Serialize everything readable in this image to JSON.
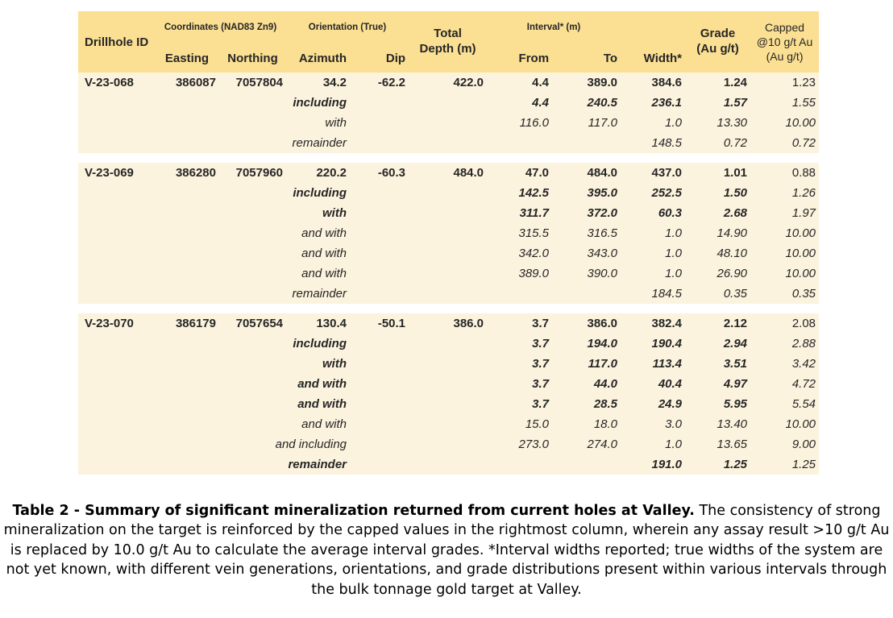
{
  "colors": {
    "header_bg": "#fbdf92",
    "body_bg": "#fcf3de",
    "table_text": "#262626",
    "caption_text": "#000000",
    "page_bg": "#ffffff"
  },
  "table": {
    "header": {
      "drillhole_id": "Drillhole ID",
      "coordinates_group": "Coordinates (NAD83 Zn9)",
      "easting": "Easting",
      "northing": "Northing",
      "orientation_group": "Orientation (True)",
      "azimuth": "Azimuth",
      "dip": "Dip",
      "total_depth": "Total Depth (m)",
      "interval_group": "Interval* (m)",
      "from": "From",
      "to": "To",
      "width": "Width*",
      "grade": "Grade (Au g/t)",
      "capped": "Capped @10 g/t Au (Au g/t)"
    },
    "groups": [
      {
        "drillhole_id": "V-23-068",
        "easting": "386087",
        "northing": "7057804",
        "azimuth": "34.2",
        "dip": "-62.2",
        "total_depth": "422.0",
        "rows": [
          {
            "label": "",
            "style": "bold",
            "from": "4.4",
            "to": "389.0",
            "width": "384.6",
            "grade": "1.24",
            "capped": "1.23"
          },
          {
            "label": "including",
            "style": "bold-italic",
            "from": "4.4",
            "to": "240.5",
            "width": "236.1",
            "grade": "1.57",
            "capped": "1.55"
          },
          {
            "label": "with",
            "style": "italic",
            "from": "116.0",
            "to": "117.0",
            "width": "1.0",
            "grade": "13.30",
            "capped": "10.00"
          },
          {
            "label": "remainder",
            "style": "italic",
            "from": "",
            "to": "",
            "width": "148.5",
            "grade": "0.72",
            "capped": "0.72"
          }
        ]
      },
      {
        "drillhole_id": "V-23-069",
        "easting": "386280",
        "northing": "7057960",
        "azimuth": "220.2",
        "dip": "-60.3",
        "total_depth": "484.0",
        "rows": [
          {
            "label": "",
            "style": "bold",
            "from": "47.0",
            "to": "484.0",
            "width": "437.0",
            "grade": "1.01",
            "capped": "0.88"
          },
          {
            "label": "including",
            "style": "bold-italic",
            "from": "142.5",
            "to": "395.0",
            "width": "252.5",
            "grade": "1.50",
            "capped": "1.26"
          },
          {
            "label": "with",
            "style": "bold-italic",
            "from": "311.7",
            "to": "372.0",
            "width": "60.3",
            "grade": "2.68",
            "capped": "1.97"
          },
          {
            "label": "and with",
            "style": "italic",
            "from": "315.5",
            "to": "316.5",
            "width": "1.0",
            "grade": "14.90",
            "capped": "10.00"
          },
          {
            "label": "and with",
            "style": "italic",
            "from": "342.0",
            "to": "343.0",
            "width": "1.0",
            "grade": "48.10",
            "capped": "10.00"
          },
          {
            "label": "and with",
            "style": "italic",
            "from": "389.0",
            "to": "390.0",
            "width": "1.0",
            "grade": "26.90",
            "capped": "10.00"
          },
          {
            "label": "remainder",
            "style": "italic",
            "from": "",
            "to": "",
            "width": "184.5",
            "grade": "0.35",
            "capped": "0.35"
          }
        ]
      },
      {
        "drillhole_id": "V-23-070",
        "easting": "386179",
        "northing": "7057654",
        "azimuth": "130.4",
        "dip": "-50.1",
        "total_depth": "386.0",
        "rows": [
          {
            "label": "",
            "style": "bold",
            "from": "3.7",
            "to": "386.0",
            "width": "382.4",
            "grade": "2.12",
            "capped": "2.08"
          },
          {
            "label": "including",
            "style": "bold-italic",
            "from": "3.7",
            "to": "194.0",
            "width": "190.4",
            "grade": "2.94",
            "capped": "2.88"
          },
          {
            "label": "with",
            "style": "bold-italic",
            "from": "3.7",
            "to": "117.0",
            "width": "113.4",
            "grade": "3.51",
            "capped": "3.42"
          },
          {
            "label": "and with",
            "style": "bold-italic",
            "from": "3.7",
            "to": "44.0",
            "width": "40.4",
            "grade": "4.97",
            "capped": "4.72"
          },
          {
            "label": "and with",
            "style": "bold-italic",
            "from": "3.7",
            "to": "28.5",
            "width": "24.9",
            "grade": "5.95",
            "capped": "5.54"
          },
          {
            "label": "and with",
            "style": "italic",
            "from": "15.0",
            "to": "18.0",
            "width": "3.0",
            "grade": "13.40",
            "capped": "10.00"
          },
          {
            "label": "and including",
            "style": "italic",
            "from": "273.0",
            "to": "274.0",
            "width": "1.0",
            "grade": "13.65",
            "capped": "9.00"
          },
          {
            "label": "remainder",
            "style": "bold-italic",
            "from": "",
            "to": "",
            "width": "191.0",
            "grade": "1.25",
            "capped": "1.25"
          }
        ]
      }
    ]
  },
  "caption": {
    "bold": "Table 2 - Summary of significant mineralization returned from current holes at Valley.",
    "text": " The consistency of strong mineralization on the target is reinforced by the capped values in the rightmost column, wherein any assay result >10 g/t Au is replaced by 10.0 g/t Au to calculate the average interval grades. *Interval widths reported; true widths of the system are not yet known, with different vein generations, orientations, and grade distributions present within various intervals through the bulk tonnage gold target at Valley."
  }
}
